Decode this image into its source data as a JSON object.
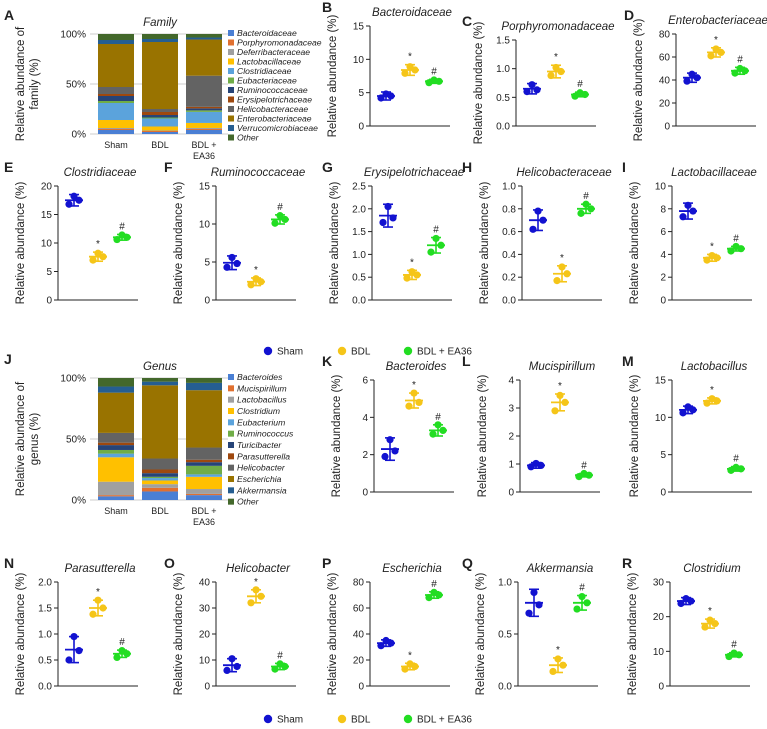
{
  "colors": {
    "sham": "#1212d0",
    "bdl": "#f5c518",
    "ea36": "#22dd22",
    "axis": "#222222"
  },
  "legend": [
    {
      "label": "Sham",
      "color": "#1212d0"
    },
    {
      "label": "BDL",
      "color": "#f5c518"
    },
    {
      "label": "BDL + EA36",
      "color": "#22dd22"
    }
  ],
  "chart_data": [
    {
      "letter": "A",
      "type": "bar",
      "stacked": true,
      "title": "Family",
      "ylabel": "Relative abundance of family (%)",
      "categories": [
        "Sham",
        "BDL",
        "BDL + EA36"
      ],
      "yticks": [
        "0%",
        "50%",
        "100%"
      ],
      "series": [
        {
          "name": "Bacteroidaceae",
          "color": "#4a7fd4",
          "values": [
            4,
            2,
            4
          ]
        },
        {
          "name": "Porphyromonadaceae",
          "color": "#e07030",
          "values": [
            1,
            1,
            1
          ]
        },
        {
          "name": "Deferribacteraceae",
          "color": "#a0a0a0",
          "values": [
            1,
            0.5,
            1
          ]
        },
        {
          "name": "Lactobacillaceae",
          "color": "#ffc000",
          "values": [
            8,
            4,
            5
          ]
        },
        {
          "name": "Clostridiaceae",
          "color": "#5ba3dc",
          "values": [
            17,
            8,
            11
          ]
        },
        {
          "name": "Eubacteriaceae",
          "color": "#70ad47",
          "values": [
            2,
            1,
            1.5
          ]
        },
        {
          "name": "Ruminococcaceae",
          "color": "#264478",
          "values": [
            5,
            2.5,
            2
          ]
        },
        {
          "name": "Erysipelotrichaceae",
          "color": "#9e480e",
          "values": [
            2,
            3,
            1.5
          ]
        },
        {
          "name": "Helicobacteraceae",
          "color": "#636363",
          "values": [
            7,
            3,
            31
          ]
        },
        {
          "name": "Enterobacteriaceae",
          "color": "#997300",
          "values": [
            43,
            67,
            36
          ]
        },
        {
          "name": "Verrucomicrobiaceae",
          "color": "#255e91",
          "values": [
            4,
            3,
            2
          ]
        },
        {
          "name": "Other",
          "color": "#43682b",
          "values": [
            6,
            5,
            3.5
          ]
        }
      ]
    },
    {
      "letter": "B",
      "type": "scatter",
      "title": "Bacteroidaceae",
      "ylabel": "Relative abundance (%)",
      "ylim": [
        0,
        15
      ],
      "yticks": [
        0,
        5,
        10,
        15
      ],
      "groups": [
        "Sham",
        "BDL",
        "BDL + EA36"
      ],
      "means": [
        4.5,
        8.4,
        6.7
      ],
      "errors": [
        0.6,
        0.8,
        0.3
      ],
      "points": [
        [
          4.2,
          4.8,
          4.5
        ],
        [
          7.9,
          8.9,
          8.4
        ],
        [
          6.5,
          6.9,
          6.7
        ]
      ],
      "marks": [
        "",
        "*",
        "#"
      ]
    },
    {
      "letter": "C",
      "type": "scatter",
      "title": "Porphyromonadaceae",
      "ylabel": "Relative abundance (%)",
      "ylim": [
        0,
        1.5
      ],
      "yticks": [
        0.0,
        0.5,
        1.0,
        1.5
      ],
      "groups": [
        "Sham",
        "BDL",
        "BDL + EA36"
      ],
      "means": [
        0.65,
        0.95,
        0.55
      ],
      "errors": [
        0.09,
        0.11,
        0.04
      ],
      "points": [
        [
          0.6,
          0.72,
          0.63
        ],
        [
          0.88,
          1.02,
          0.95
        ],
        [
          0.52,
          0.58,
          0.55
        ]
      ],
      "marks": [
        "",
        "*",
        "#"
      ]
    },
    {
      "letter": "D",
      "type": "scatter",
      "title": "Enterobacteriaceae",
      "ylabel": "Relative abundance (%)",
      "ylim": [
        0,
        80
      ],
      "yticks": [
        0,
        20,
        40,
        60,
        80
      ],
      "groups": [
        "Sham",
        "BDL",
        "BDL + EA36"
      ],
      "means": [
        42,
        64,
        48
      ],
      "errors": [
        4,
        4,
        3
      ],
      "points": [
        [
          39,
          45,
          42
        ],
        [
          61,
          67,
          64
        ],
        [
          46,
          50,
          48
        ]
      ],
      "marks": [
        "",
        "*",
        "#"
      ]
    },
    {
      "letter": "E",
      "type": "scatter",
      "title": "Clostridiaceae",
      "ylabel": "Relative abundance (%)",
      "ylim": [
        0,
        20
      ],
      "yticks": [
        0,
        5,
        10,
        15,
        20
      ],
      "groups": [
        "Sham",
        "BDL",
        "BDL + EA36"
      ],
      "means": [
        17.5,
        7.6,
        11
      ],
      "errors": [
        1.0,
        0.8,
        0.5
      ],
      "points": [
        [
          16.8,
          18.2,
          17.5
        ],
        [
          7.0,
          8.2,
          7.6
        ],
        [
          10.6,
          11.4,
          11.0
        ]
      ],
      "marks": [
        "",
        "*",
        "#"
      ]
    },
    {
      "letter": "F",
      "type": "scatter",
      "title": "Ruminococcaceae",
      "ylabel": "Relative abundance (%)",
      "ylim": [
        0,
        15
      ],
      "yticks": [
        0,
        5,
        10,
        15
      ],
      "groups": [
        "Sham",
        "BDL",
        "BDL + EA36"
      ],
      "means": [
        4.9,
        2.4,
        10.6
      ],
      "errors": [
        0.9,
        0.5,
        0.6
      ],
      "points": [
        [
          4.3,
          5.6,
          4.8
        ],
        [
          2.0,
          2.8,
          2.4
        ],
        [
          10.1,
          11.1,
          10.6
        ]
      ],
      "marks": [
        "",
        "*",
        "#"
      ]
    },
    {
      "letter": "G",
      "type": "scatter",
      "title": "Erysipelotrichaceae",
      "ylabel": "Relative abundance (%)",
      "ylim": [
        0,
        2.5
      ],
      "yticks": [
        0.0,
        0.5,
        1.0,
        1.5,
        2.0,
        2.5
      ],
      "groups": [
        "Sham",
        "BDL",
        "BDL + EA36"
      ],
      "means": [
        1.85,
        0.55,
        1.2
      ],
      "errors": [
        0.25,
        0.1,
        0.17
      ],
      "points": [
        [
          1.7,
          2.05,
          1.8
        ],
        [
          0.48,
          0.62,
          0.55
        ],
        [
          1.05,
          1.35,
          1.2
        ]
      ],
      "marks": [
        "",
        "*",
        "#"
      ]
    },
    {
      "letter": "H",
      "type": "scatter",
      "title": "Helicobacteraceae",
      "ylabel": "Relative abundance (%)",
      "ylim": [
        0,
        1.0
      ],
      "yticks": [
        0.0,
        0.2,
        0.4,
        0.6,
        0.8,
        1.0
      ],
      "groups": [
        "Sham",
        "BDL",
        "BDL + EA36"
      ],
      "means": [
        0.7,
        0.23,
        0.8
      ],
      "errors": [
        0.09,
        0.07,
        0.04
      ],
      "points": [
        [
          0.62,
          0.78,
          0.7
        ],
        [
          0.17,
          0.29,
          0.23
        ],
        [
          0.76,
          0.84,
          0.8
        ]
      ],
      "marks": [
        "",
        "*",
        "#"
      ]
    },
    {
      "letter": "I",
      "type": "scatter",
      "title": "Lactobacillaceae",
      "ylabel": "Relative abundance (%)",
      "ylim": [
        0,
        10
      ],
      "yticks": [
        0,
        2,
        4,
        6,
        8,
        10
      ],
      "groups": [
        "Sham",
        "BDL",
        "BDL + EA36"
      ],
      "means": [
        7.8,
        3.7,
        4.5
      ],
      "errors": [
        0.7,
        0.3,
        0.2
      ],
      "points": [
        [
          7.3,
          8.3,
          7.8
        ],
        [
          3.5,
          3.9,
          3.7
        ],
        [
          4.3,
          4.7,
          4.5
        ]
      ],
      "marks": [
        "",
        "*",
        "#"
      ]
    },
    {
      "letter": "J",
      "type": "bar",
      "stacked": true,
      "title": "Genus",
      "ylabel": "Relative abundance of genus (%)",
      "categories": [
        "Sham",
        "BDL",
        "BDL + EA36"
      ],
      "yticks": [
        "0%",
        "50%",
        "100%"
      ],
      "series": [
        {
          "name": "Bacteroides",
          "color": "#4a7fd4",
          "values": [
            3,
            7,
            4
          ]
        },
        {
          "name": "Mucispirillum",
          "color": "#e07030",
          "values": [
            1,
            3,
            1
          ]
        },
        {
          "name": "Lactobacillus",
          "color": "#a0a0a0",
          "values": [
            11,
            3,
            4
          ]
        },
        {
          "name": "Clostridium",
          "color": "#ffc000",
          "values": [
            20,
            3,
            10
          ]
        },
        {
          "name": "Eubacterium",
          "color": "#5ba3dc",
          "values": [
            3,
            2,
            2
          ]
        },
        {
          "name": "Ruminococcus",
          "color": "#70ad47",
          "values": [
            3,
            1,
            7
          ]
        },
        {
          "name": "Turicibacter",
          "color": "#264478",
          "values": [
            4,
            3,
            3
          ]
        },
        {
          "name": "Parasutterella",
          "color": "#9e480e",
          "values": [
            2,
            3,
            2
          ]
        },
        {
          "name": "Helicobacter",
          "color": "#636363",
          "values": [
            8,
            9,
            10
          ]
        },
        {
          "name": "Escherichia",
          "color": "#997300",
          "values": [
            33,
            60,
            47
          ]
        },
        {
          "name": "Akkermansia",
          "color": "#255e91",
          "values": [
            5,
            3,
            6
          ]
        },
        {
          "name": "Other",
          "color": "#43682b",
          "values": [
            7,
            3,
            4
          ]
        }
      ]
    },
    {
      "letter": "K",
      "type": "scatter",
      "title": "Bacteroides",
      "ylabel": "Relative abundance (%)",
      "ylim": [
        0,
        6
      ],
      "yticks": [
        0,
        2,
        4,
        6
      ],
      "groups": [
        "Sham",
        "BDL",
        "BDL + EA36"
      ],
      "means": [
        2.3,
        4.9,
        3.3
      ],
      "errors": [
        0.6,
        0.4,
        0.3
      ],
      "points": [
        [
          1.9,
          2.8,
          2.2
        ],
        [
          4.6,
          5.3,
          4.8
        ],
        [
          3.1,
          3.6,
          3.3
        ]
      ],
      "marks": [
        "",
        "*",
        "#"
      ]
    },
    {
      "letter": "L",
      "type": "scatter",
      "title": "Mucispirillum",
      "ylabel": "Relative abundance (%)",
      "ylim": [
        0,
        4
      ],
      "yticks": [
        0,
        1,
        2,
        3,
        4
      ],
      "groups": [
        "Sham",
        "BDL",
        "BDL + EA36"
      ],
      "means": [
        0.95,
        3.2,
        0.6
      ],
      "errors": [
        0.1,
        0.3,
        0.06
      ],
      "points": [
        [
          0.9,
          1.02,
          0.95
        ],
        [
          2.9,
          3.45,
          3.2
        ],
        [
          0.55,
          0.66,
          0.6
        ]
      ],
      "marks": [
        "",
        "*",
        "#"
      ]
    },
    {
      "letter": "M",
      "type": "scatter",
      "title": "Lactobacillus",
      "ylabel": "Relative abundance (%)",
      "ylim": [
        0,
        15
      ],
      "yticks": [
        0,
        5,
        10,
        15
      ],
      "groups": [
        "Sham",
        "BDL",
        "BDL + EA36"
      ],
      "means": [
        11,
        12.2,
        3.1
      ],
      "errors": [
        0.5,
        0.4,
        0.3
      ],
      "points": [
        [
          10.6,
          11.4,
          11.0
        ],
        [
          11.9,
          12.5,
          12.2
        ],
        [
          2.9,
          3.3,
          3.1
        ]
      ],
      "marks": [
        "",
        "*",
        "#"
      ]
    },
    {
      "letter": "N",
      "type": "scatter",
      "title": "Parasutterella",
      "ylabel": "Relative abundance (%)",
      "ylim": [
        0,
        2.0
      ],
      "yticks": [
        0.0,
        0.5,
        1.0,
        1.5,
        2.0
      ],
      "groups": [
        "Sham",
        "BDL",
        "BDL + EA36"
      ],
      "means": [
        0.7,
        1.5,
        0.62
      ],
      "errors": [
        0.25,
        0.15,
        0.07
      ],
      "points": [
        [
          0.5,
          0.95,
          0.68
        ],
        [
          1.38,
          1.65,
          1.5
        ],
        [
          0.55,
          0.68,
          0.62
        ]
      ],
      "marks": [
        "",
        "*",
        "#"
      ]
    },
    {
      "letter": "O",
      "type": "scatter",
      "title": "Helicobacter",
      "ylabel": "Relative abundance (%)",
      "ylim": [
        0,
        40
      ],
      "yticks": [
        0,
        10,
        20,
        30,
        40
      ],
      "groups": [
        "Sham",
        "BDL",
        "BDL + EA36"
      ],
      "means": [
        8,
        34.5,
        7.5
      ],
      "errors": [
        2.5,
        2.5,
        1.2
      ],
      "points": [
        [
          6,
          10.5,
          7.5
        ],
        [
          32,
          37,
          34.5
        ],
        [
          6.5,
          8.5,
          7.5
        ]
      ],
      "marks": [
        "",
        "*",
        "#"
      ]
    },
    {
      "letter": "P",
      "type": "scatter",
      "title": "Escherichia",
      "ylabel": "Relative abundance (%)",
      "ylim": [
        0,
        80
      ],
      "yticks": [
        0,
        20,
        40,
        60,
        80
      ],
      "groups": [
        "Sham",
        "BDL",
        "BDL + EA36"
      ],
      "means": [
        33,
        15,
        70
      ],
      "errors": [
        2.5,
        2.5,
        2.5
      ],
      "points": [
        [
          31,
          35,
          33
        ],
        [
          13,
          17,
          15
        ],
        [
          68,
          72,
          70
        ]
      ],
      "marks": [
        "",
        "*",
        "#"
      ]
    },
    {
      "letter": "Q",
      "type": "scatter",
      "title": "Akkermansia",
      "ylabel": "Relative abundance (%)",
      "ylim": [
        0,
        1.0
      ],
      "yticks": [
        0.0,
        0.5,
        1.0
      ],
      "groups": [
        "Sham",
        "BDL",
        "BDL + EA36"
      ],
      "means": [
        0.8,
        0.2,
        0.8
      ],
      "errors": [
        0.13,
        0.07,
        0.07
      ],
      "points": [
        [
          0.7,
          0.9,
          0.78
        ],
        [
          0.14,
          0.26,
          0.2
        ],
        [
          0.74,
          0.86,
          0.8
        ]
      ],
      "marks": [
        "",
        "*",
        "#"
      ]
    },
    {
      "letter": "R",
      "type": "scatter",
      "title": "Clostridium",
      "ylabel": "Relative abundance (%)",
      "ylim": [
        0,
        30
      ],
      "yticks": [
        0,
        10,
        20,
        30
      ],
      "groups": [
        "Sham",
        "BDL",
        "BDL + EA36"
      ],
      "means": [
        24.5,
        18,
        9
      ],
      "errors": [
        1.0,
        1.3,
        0.6
      ],
      "points": [
        [
          23.8,
          25.2,
          24.5
        ],
        [
          17,
          19,
          18
        ],
        [
          8.5,
          9.5,
          9
        ]
      ],
      "marks": [
        "",
        "*",
        "#"
      ]
    }
  ]
}
